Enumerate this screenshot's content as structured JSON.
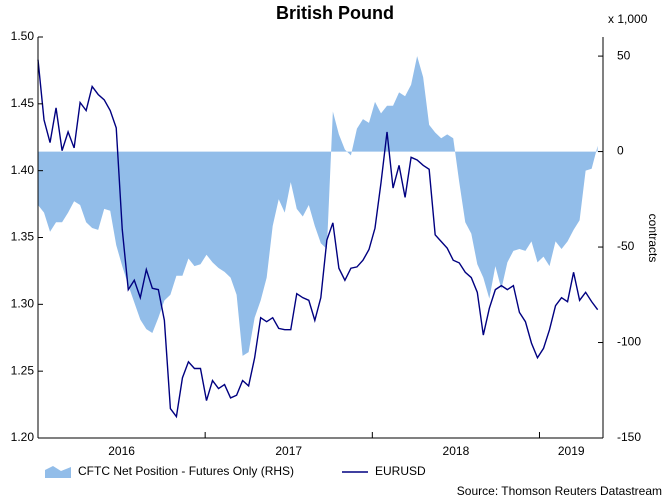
{
  "chart_data": {
    "type": "line",
    "title": "British Pound",
    "y2_unit": "x 1,000",
    "y2_label": "contracts",
    "source": "Source: Thomson Reuters Datastream",
    "xlim": [
      2016,
      2019.38
    ],
    "xticks": [
      {
        "value": 2016,
        "label": "2016"
      },
      {
        "value": 2017,
        "label": "2017"
      },
      {
        "value": 2018,
        "label": "2018"
      },
      {
        "value": 2019,
        "label": "2019"
      }
    ],
    "ylim": [
      1.2,
      1.5
    ],
    "yticks": [
      {
        "value": 1.2,
        "label": "1.20"
      },
      1.25,
      {
        "value": 1.3,
        "label": "1.30"
      },
      1.35,
      {
        "value": 1.4,
        "label": "1.40"
      },
      1.45,
      {
        "value": 1.5,
        "label": "1.50"
      }
    ],
    "y2lim": [
      -150,
      60
    ],
    "y2ticks": [
      -150,
      -100,
      -50,
      0,
      50
    ],
    "x": [
      2016.0,
      2016.036,
      2016.072,
      2016.108,
      2016.144,
      2016.18,
      2016.216,
      2016.252,
      2016.288,
      2016.324,
      2016.36,
      2016.396,
      2016.432,
      2016.468,
      2016.504,
      2016.54,
      2016.576,
      2016.612,
      2016.648,
      2016.684,
      2016.72,
      2016.756,
      2016.792,
      2016.828,
      2016.864,
      2016.9,
      2016.936,
      2016.972,
      2017.008,
      2017.044,
      2017.08,
      2017.116,
      2017.152,
      2017.188,
      2017.224,
      2017.26,
      2017.296,
      2017.332,
      2017.368,
      2017.404,
      2017.44,
      2017.476,
      2017.512,
      2017.548,
      2017.584,
      2017.62,
      2017.656,
      2017.692,
      2017.728,
      2017.764,
      2017.8,
      2017.836,
      2017.872,
      2017.908,
      2017.944,
      2017.98,
      2018.016,
      2018.052,
      2018.088,
      2018.124,
      2018.16,
      2018.196,
      2018.232,
      2018.268,
      2018.304,
      2018.34,
      2018.376,
      2018.412,
      2018.448,
      2018.484,
      2018.52,
      2018.556,
      2018.592,
      2018.628,
      2018.664,
      2018.7,
      2018.736,
      2018.772,
      2018.808,
      2018.844,
      2018.88,
      2018.916,
      2018.952,
      2018.988,
      2019.024,
      2019.06,
      2019.096,
      2019.132,
      2019.168,
      2019.204,
      2019.24,
      2019.276,
      2019.312,
      2019.348
    ],
    "series": [
      {
        "name": "CFTC Net Position - Futures Only (RHS)",
        "type": "area",
        "axis": "y2",
        "color": "#92bde9",
        "values": [
          -28,
          -32,
          -42,
          -37,
          -37,
          -32,
          -26,
          -28,
          -37,
          -40,
          -41,
          -30,
          -31,
          -49,
          -60,
          -70,
          -79,
          -88,
          -93,
          -95,
          -87,
          -78,
          -75,
          -65,
          -65,
          -56,
          -60,
          -59,
          -54,
          -58,
          -61,
          -63,
          -66,
          -75,
          -107,
          -105,
          -87,
          -78,
          -66,
          -39,
          -25,
          -32,
          -16,
          -30,
          -34,
          -28,
          -39,
          -48,
          -51,
          21,
          9,
          1,
          -2,
          12,
          17,
          15,
          26,
          20,
          24,
          24,
          31,
          29,
          35,
          50,
          39,
          14,
          10,
          7,
          9,
          7,
          -16,
          -37,
          -43,
          -59,
          -66,
          -77,
          -60,
          -72,
          -58,
          -52,
          -51,
          -52,
          -47,
          -58,
          -55,
          -60,
          -47,
          -51,
          -47,
          -41,
          -36,
          -10,
          -9,
          3
        ]
      },
      {
        "name": "EURUSD",
        "type": "line",
        "color": "#000080",
        "values": [
          1.483,
          1.438,
          1.421,
          1.447,
          1.415,
          1.429,
          1.417,
          1.451,
          1.445,
          1.463,
          1.457,
          1.453,
          1.445,
          1.432,
          1.356,
          1.311,
          1.318,
          1.305,
          1.326,
          1.312,
          1.311,
          1.288,
          1.222,
          1.216,
          1.245,
          1.257,
          1.252,
          1.252,
          1.228,
          1.243,
          1.237,
          1.24,
          1.23,
          1.232,
          1.243,
          1.239,
          1.26,
          1.29,
          1.287,
          1.29,
          1.282,
          1.281,
          1.281,
          1.308,
          1.305,
          1.303,
          1.288,
          1.305,
          1.348,
          1.361,
          1.327,
          1.318,
          1.327,
          1.328,
          1.333,
          1.341,
          1.357,
          1.391,
          1.429,
          1.387,
          1.404,
          1.38,
          1.41,
          1.408,
          1.404,
          1.401,
          1.352,
          1.347,
          1.342,
          1.333,
          1.331,
          1.324,
          1.32,
          1.309,
          1.277,
          1.297,
          1.311,
          1.314,
          1.311,
          1.314,
          1.294,
          1.287,
          1.271,
          1.26,
          1.267,
          1.281,
          1.299,
          1.305,
          1.302,
          1.324,
          1.303,
          1.309,
          1.302,
          1.296
        ]
      }
    ]
  }
}
